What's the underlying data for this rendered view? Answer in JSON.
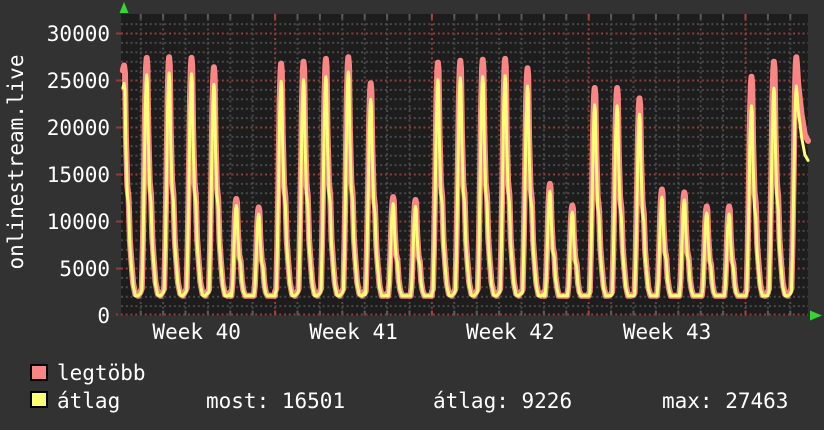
{
  "title": "onlinestream.live",
  "legend": [
    {
      "label": "legtöbb",
      "color": "#f98585"
    },
    {
      "label": "átlag",
      "color": "#ffff78"
    }
  ],
  "stats": [
    {
      "label": "most:",
      "value": "16501"
    },
    {
      "label": "átlag:",
      "value": "9226"
    },
    {
      "label": "max:",
      "value": "27463"
    }
  ],
  "chart_data": {
    "type": "line",
    "title": "onlinestream.live",
    "x_tick_labels": [
      "Week 40",
      "Week 41",
      "Week 42",
      "Week 43"
    ],
    "x_label_center_days": [
      3.5,
      10.5,
      17.5,
      24.5
    ],
    "y_ticks": [
      0,
      5000,
      10000,
      15000,
      20000,
      25000,
      30000
    ],
    "ylim": [
      0,
      32000
    ],
    "span_days": 31,
    "grid": {
      "minor_y_step": 1000,
      "major_y_step": 5000,
      "minor_x_step_days": 1,
      "major_x_step_days": 7,
      "grid_on": true
    },
    "legend_position": "bottom-left",
    "colors": {
      "background": "#323232",
      "canvas": "#1d1d1d",
      "grid_minor": "#4a4a4a",
      "grid_major": "#8e3e3c",
      "text": "#ffffff",
      "arrow": "#33d633",
      "legtobb": "#f98585",
      "atlag": "#ffff78"
    },
    "series": [
      {
        "name": "legtöbb",
        "color": "#f98585",
        "width": 6,
        "daily_peaks": [
          26600,
          27400,
          27463,
          27400,
          26400,
          12400,
          11500,
          26800,
          27000,
          27300,
          27463,
          24700,
          12600,
          12300,
          26900,
          27100,
          27200,
          27300,
          26300,
          14000,
          11700,
          24200,
          24200,
          23100,
          13400,
          13100,
          11600,
          11600,
          25400,
          27000,
          27463
        ]
      },
      {
        "name": "átlag",
        "color": "#ffff78",
        "width": 3,
        "daily_peaks": [
          24700,
          25600,
          25800,
          25700,
          24600,
          11700,
          10800,
          24900,
          25100,
          25400,
          25900,
          23000,
          11900,
          11600,
          25100,
          25300,
          25400,
          25500,
          24400,
          13200,
          11000,
          22400,
          22300,
          21400,
          12600,
          12300,
          10900,
          10800,
          22300,
          24200,
          24400
        ]
      }
    ],
    "daily_shape": [
      [
        0.0,
        0.095
      ],
      [
        0.05,
        0.105
      ],
      [
        0.1,
        0.28
      ],
      [
        0.15,
        0.55
      ],
      [
        0.2,
        0.85
      ],
      [
        0.24,
        0.97
      ],
      [
        0.27,
        1.0
      ],
      [
        0.3,
        0.97
      ],
      [
        0.34,
        0.72
      ],
      [
        0.4,
        0.52
      ],
      [
        0.46,
        0.47
      ],
      [
        0.52,
        0.3
      ],
      [
        0.58,
        0.22
      ],
      [
        0.66,
        0.13
      ],
      [
        0.76,
        0.085
      ],
      [
        0.88,
        0.075
      ],
      [
        1.0,
        0.095
      ]
    ],
    "first_day_shape_head": [
      [
        0.12,
        0.9
      ],
      [
        0.2,
        0.98
      ],
      [
        0.26,
        1.0
      ]
    ],
    "last_day_tail": [
      [
        0.35,
        0.9
      ],
      [
        0.5,
        0.78
      ],
      [
        0.65,
        0.7
      ],
      [
        0.79,
        0.6763
      ]
    ],
    "night_floor": 2100,
    "stats": {
      "most": 16501,
      "átlag": 9226,
      "max": 27463
    }
  }
}
